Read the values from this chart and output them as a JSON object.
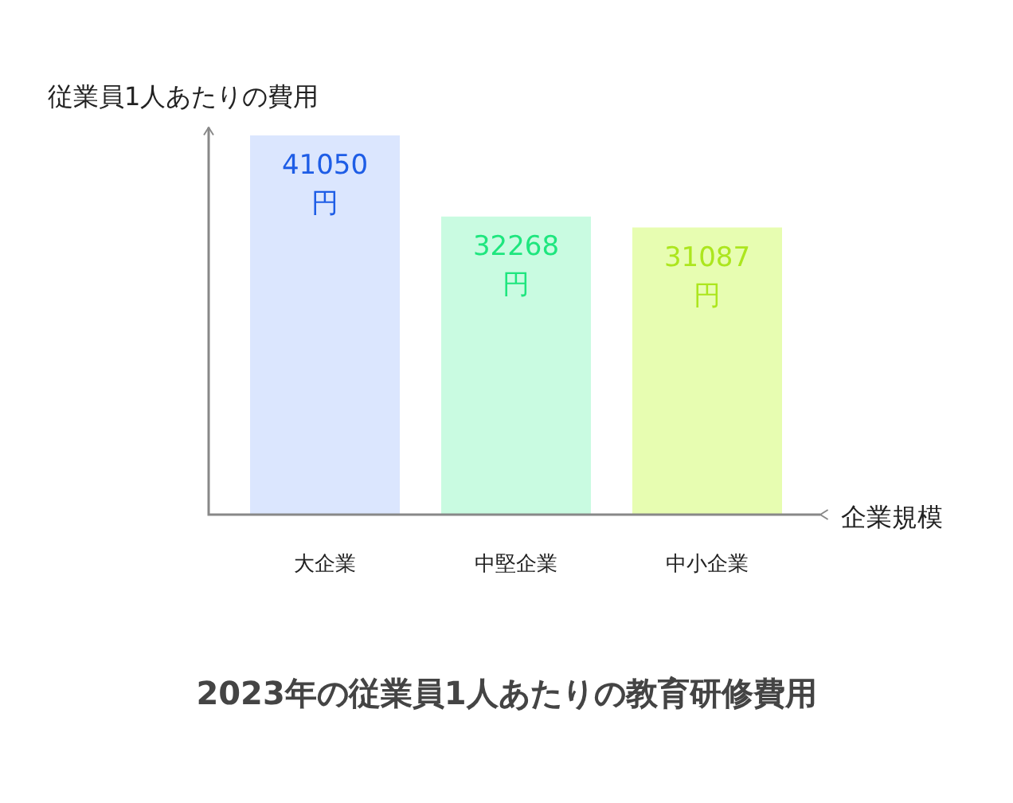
{
  "chart_data": {
    "type": "bar",
    "title": "2023年の従業員1人あたりの教育研修費用",
    "xlabel": "企業規模",
    "ylabel": "従業員1人あたりの費用",
    "categories": [
      "大企業",
      "中堅企業",
      "中小企業"
    ],
    "values": [
      41050,
      32268,
      31087
    ],
    "colors": [
      "#dbe6fe",
      "#c9fbe1",
      "#e7fdb1"
    ],
    "value_labels": [
      "41050円",
      "32268円",
      "31087円"
    ]
  }
}
